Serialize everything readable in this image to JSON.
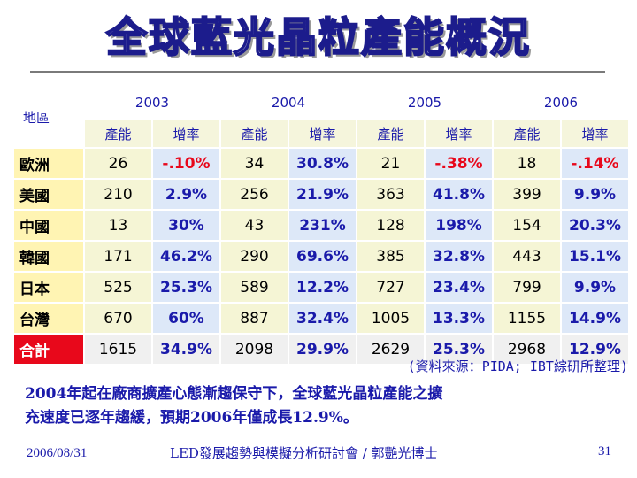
{
  "slide": {
    "title": "全球藍光晶粒產能概況",
    "source": "(資料來源：PIDA; IBT綜研所整理)",
    "summary_line1": "2004年起在廠商擴產心態漸趨保守下，全球藍光晶粒產能之擴",
    "summary_line2": "充速度已逐年趨緩，預期2006年僅成長12.9%。",
    "footer_date": "2006/08/31",
    "footer_center": "LED發展趨勢與模擬分析研討會 / 郭艷光博士",
    "page_number": "31"
  },
  "table": {
    "region_header": "地區",
    "years": [
      "2003",
      "2004",
      "2005",
      "2006"
    ],
    "sub_headers": [
      "產能",
      "增率"
    ],
    "rows": [
      {
        "region": "歐洲",
        "cells": [
          "26",
          "-.10%",
          "34",
          "30.8%",
          "21",
          "-.38%",
          "18",
          "-.14%"
        ]
      },
      {
        "region": "美國",
        "cells": [
          "210",
          "2.9%",
          "256",
          "21.9%",
          "363",
          "41.8%",
          "399",
          "9.9%"
        ]
      },
      {
        "region": "中國",
        "cells": [
          "13",
          "30%",
          "43",
          "231%",
          "128",
          "198%",
          "154",
          "20.3%"
        ]
      },
      {
        "region": "韓國",
        "cells": [
          "171",
          "46.2%",
          "290",
          "69.6%",
          "385",
          "32.8%",
          "443",
          "15.1%"
        ]
      },
      {
        "region": "日本",
        "cells": [
          "525",
          "25.3%",
          "589",
          "12.2%",
          "727",
          "23.4%",
          "799",
          "9.9%"
        ]
      },
      {
        "region": "台灣",
        "cells": [
          "670",
          "60%",
          "887",
          "32.4%",
          "1005",
          "13.3%",
          "1155",
          "14.9%"
        ]
      }
    ],
    "total": {
      "region": "合計",
      "cells": [
        "1615",
        "34.9%",
        "2098",
        "29.9%",
        "2629",
        "25.3%",
        "2968",
        "12.9%"
      ]
    }
  },
  "colors": {
    "title_outline": "#1c1c8c",
    "text_blue": "#1a1aaa",
    "negative_red": "#e8081b",
    "region_bg": "#fff4b3",
    "capacity_bg": "#f5f5d5",
    "rate_bg": "#dde8f8"
  }
}
